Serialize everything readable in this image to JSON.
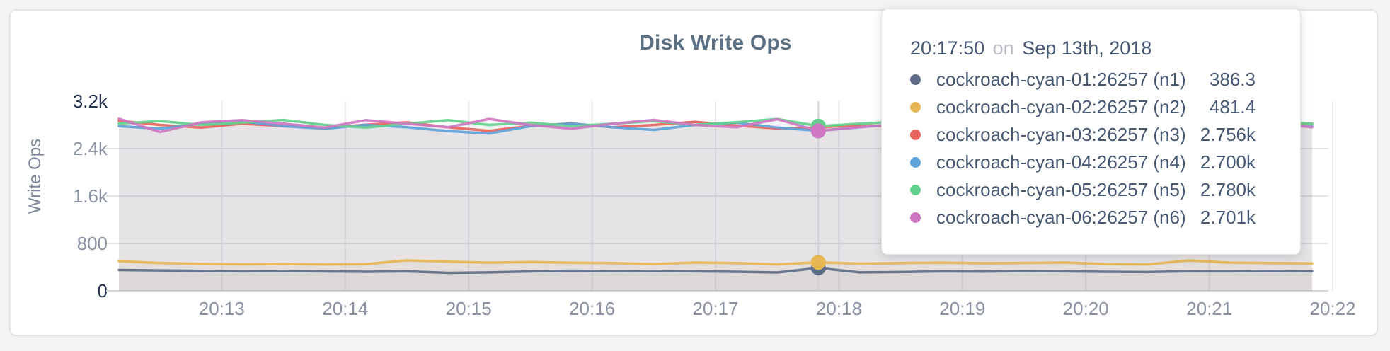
{
  "chart_data": {
    "type": "area",
    "title": "Disk Write Ops",
    "ylabel": "Write Ops",
    "ylim": [
      0,
      3200
    ],
    "grid": true,
    "x_start": "20:12:10",
    "x_end": "20:21:50",
    "sample_interval_sec": 20,
    "hover_index": 17,
    "hover_time": "20:17:50",
    "x_ticks": [
      "20:13",
      "20:14",
      "20:15",
      "20:16",
      "20:17",
      "20:18",
      "20:19",
      "20:20",
      "20:21",
      "20:22"
    ],
    "y_ticks": [
      {
        "v": 0,
        "label": "0",
        "strong": true
      },
      {
        "v": 800,
        "label": "800",
        "strong": false
      },
      {
        "v": 1600,
        "label": "1.6k",
        "strong": false
      },
      {
        "v": 2400,
        "label": "2.4k",
        "strong": false
      },
      {
        "v": 3200,
        "label": "3.2k",
        "strong": true
      }
    ],
    "series": [
      {
        "name": "cockroach-cyan-01:26257 (n1)",
        "color": "#5F6C87",
        "values": [
          352,
          345,
          338,
          330,
          336,
          328,
          322,
          330,
          305,
          312,
          328,
          340,
          332,
          336,
          330,
          322,
          310,
          386.3,
          312,
          318,
          330,
          326,
          334,
          330,
          322,
          318,
          332,
          330,
          338,
          330
        ]
      },
      {
        "name": "cockroach-cyan-02:26257 (n2)",
        "color": "#E7B654",
        "values": [
          500,
          470,
          455,
          448,
          452,
          446,
          450,
          515,
          492,
          476,
          486,
          474,
          468,
          452,
          478,
          468,
          446,
          481.4,
          460,
          468,
          476,
          466,
          470,
          478,
          450,
          446,
          512,
          476,
          468,
          462
        ]
      },
      {
        "name": "cockroach-cyan-03:26257 (n3)",
        "color": "#E8635C",
        "values": [
          2870,
          2800,
          2756,
          2820,
          2780,
          2748,
          2804,
          2844,
          2760,
          2700,
          2784,
          2824,
          2760,
          2800,
          2852,
          2792,
          2740,
          2756,
          2800,
          2764,
          2820,
          2780,
          2800,
          2760,
          2844,
          2792,
          2764,
          2896,
          2784,
          2820
        ]
      },
      {
        "name": "cockroach-cyan-04:26257 (n4)",
        "color": "#5DA3D9",
        "values": [
          2780,
          2736,
          2820,
          2856,
          2780,
          2736,
          2800,
          2760,
          2696,
          2656,
          2780,
          2824,
          2760,
          2716,
          2800,
          2840,
          2756,
          2700,
          2760,
          2820,
          2780,
          2740,
          2800,
          2756,
          2716,
          2780,
          2840,
          2760,
          2800,
          2776
        ]
      },
      {
        "name": "cockroach-cyan-05:26257 (n5)",
        "color": "#64D08D",
        "values": [
          2824,
          2864,
          2800,
          2840,
          2884,
          2800,
          2756,
          2820,
          2880,
          2800,
          2840,
          2780,
          2820,
          2864,
          2800,
          2844,
          2900,
          2780,
          2820,
          2860,
          2800,
          2840,
          2804,
          2860,
          2820,
          2784,
          2844,
          2800,
          2860,
          2820
        ]
      },
      {
        "name": "cockroach-cyan-06:26257 (n6)",
        "color": "#CF77C2",
        "values": [
          2904,
          2680,
          2844,
          2880,
          2820,
          2756,
          2880,
          2820,
          2760,
          2900,
          2800,
          2736,
          2820,
          2884,
          2800,
          2760,
          2896,
          2701,
          2760,
          2824,
          2864,
          2780,
          2820,
          2760,
          2800,
          2840,
          2784,
          2940,
          2820,
          2760
        ]
      }
    ]
  },
  "tooltip": {
    "time": "20:17:50",
    "preposition": "on",
    "date": "Sep 13th, 2018",
    "rows": [
      {
        "name": "cockroach-cyan-01:26257 (n1)",
        "value": "386.3"
      },
      {
        "name": "cockroach-cyan-02:26257 (n2)",
        "value": "481.4"
      },
      {
        "name": "cockroach-cyan-03:26257 (n3)",
        "value": "2.756k"
      },
      {
        "name": "cockroach-cyan-04:26257 (n4)",
        "value": "2.700k"
      },
      {
        "name": "cockroach-cyan-05:26257 (n5)",
        "value": "2.780k"
      },
      {
        "name": "cockroach-cyan-06:26257 (n6)",
        "value": "2.701k"
      }
    ]
  }
}
